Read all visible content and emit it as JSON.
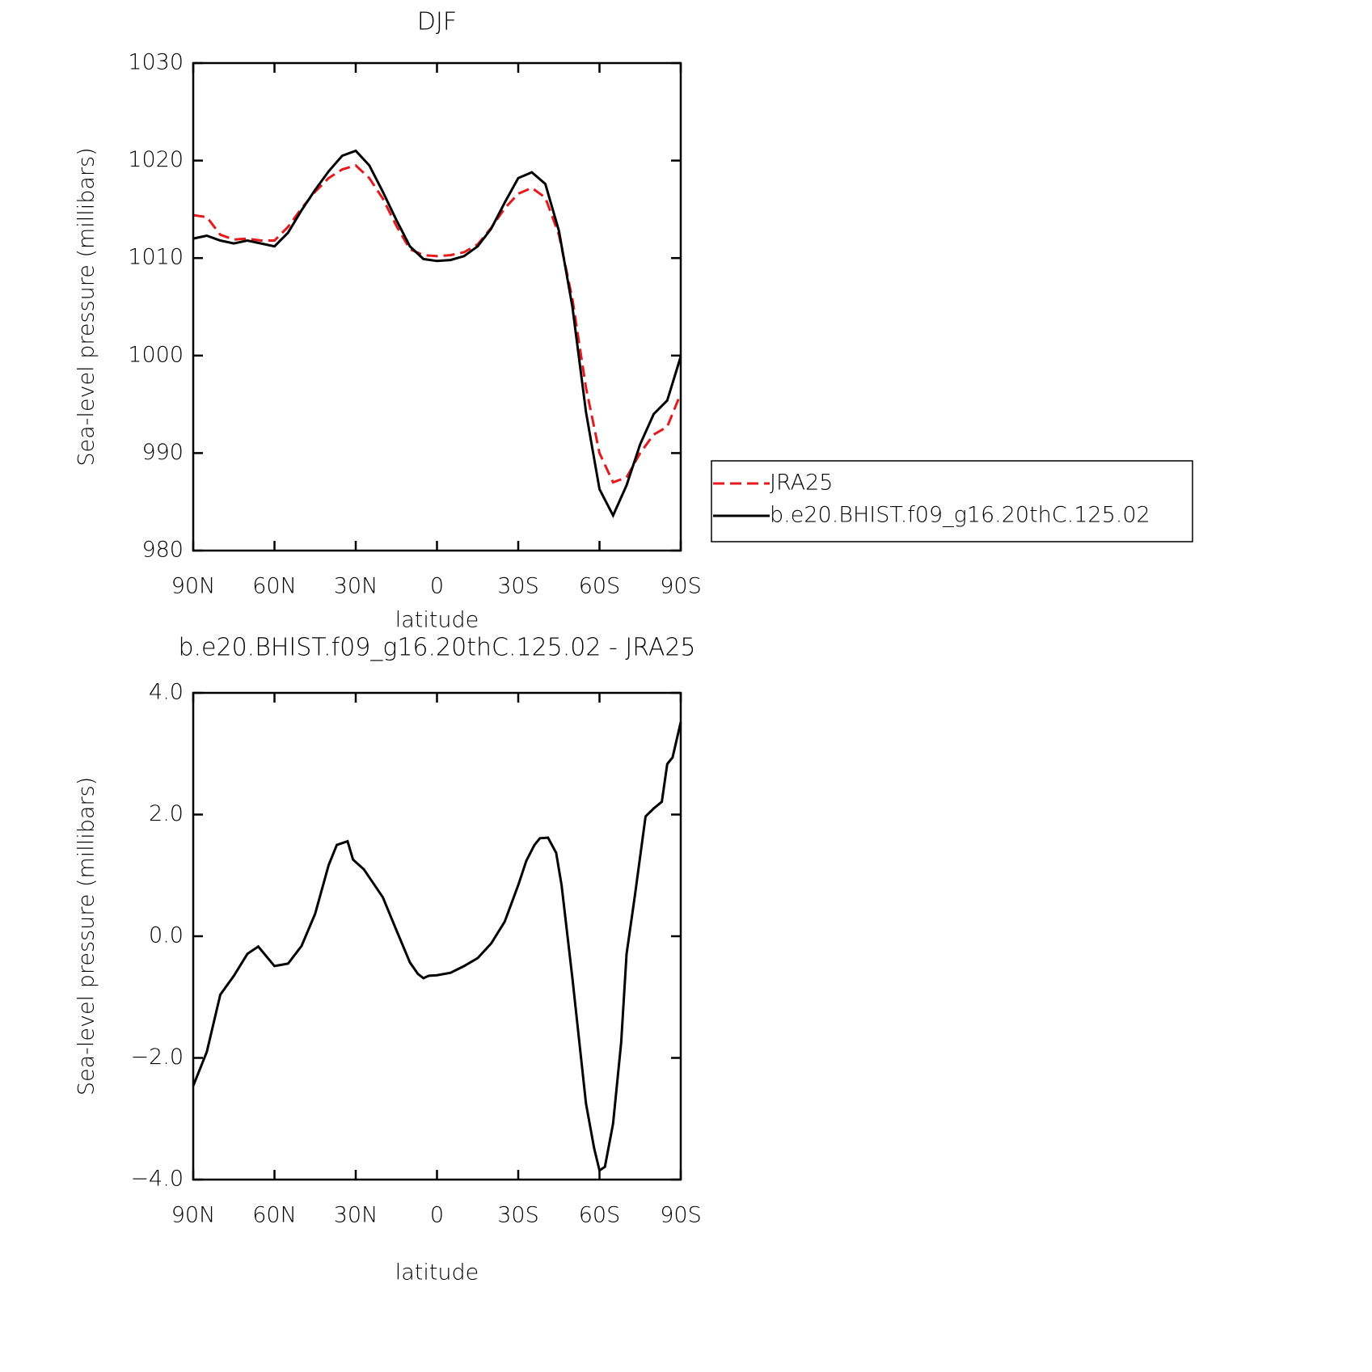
{
  "chart_data": [
    {
      "type": "line",
      "title": "DJF",
      "xlabel": "latitude",
      "ylabel": "Sea-level pressure (millibars)",
      "xlim": [
        90,
        -90
      ],
      "xticks": [
        {
          "value": 90,
          "label": "90N"
        },
        {
          "value": 60,
          "label": "60N"
        },
        {
          "value": 30,
          "label": "30N"
        },
        0,
        {
          "value": -30,
          "label": "30S"
        },
        {
          "value": -60,
          "label": "60S"
        },
        {
          "value": -90,
          "label": "90S"
        }
      ],
      "ylim": [
        980,
        1030
      ],
      "yticks": [
        980,
        990,
        1000,
        1010,
        1020,
        1030
      ],
      "legend": "right",
      "x": [
        90,
        85,
        80,
        75,
        70,
        65,
        60,
        55,
        50,
        45,
        40,
        35,
        30,
        25,
        20,
        15,
        10,
        5,
        0,
        -5,
        -10,
        -15,
        -20,
        -25,
        -30,
        -35,
        -40,
        -45,
        -50,
        -55,
        -60,
        -65,
        -70,
        -75,
        -80,
        -85,
        -90
      ],
      "series": [
        {
          "name": "JRA25",
          "color": "#e41a1c",
          "dash": "dashed",
          "values": [
            1014.4,
            1014.2,
            1012.4,
            1011.9,
            1012.0,
            1011.8,
            1011.8,
            1013.2,
            1015.1,
            1016.8,
            1018.2,
            1019.1,
            1019.5,
            1018.2,
            1016.1,
            1013.3,
            1010.9,
            1010.3,
            1010.2,
            1010.3,
            1010.6,
            1011.4,
            1013.1,
            1015.1,
            1016.6,
            1017.2,
            1016.2,
            1012.4,
            1005.8,
            996.7,
            990.0,
            987.0,
            987.5,
            990.0,
            991.9,
            992.7,
            996.1
          ]
        },
        {
          "name": "b.e20.BHIST.f09_g16.20thC.125.02",
          "color": "#000000",
          "dash": "solid",
          "values": [
            1012.0,
            1012.3,
            1011.8,
            1011.5,
            1011.8,
            1011.5,
            1011.2,
            1012.6,
            1014.9,
            1017.0,
            1018.9,
            1020.5,
            1021.0,
            1019.5,
            1016.8,
            1013.9,
            1011.2,
            1009.9,
            1009.7,
            1009.8,
            1010.2,
            1011.2,
            1013.0,
            1015.7,
            1018.2,
            1018.8,
            1017.6,
            1012.8,
            1005.0,
            994.2,
            986.3,
            983.6,
            986.7,
            990.9,
            994.0,
            995.4,
            999.9
          ]
        }
      ]
    },
    {
      "type": "line",
      "title": "b.e20.BHIST.f09_g16.20thC.125.02 - JRA25",
      "xlabel": "latitude",
      "ylabel": "Sea-level pressure (millibars)",
      "xlim": [
        90,
        -90
      ],
      "xticks": [
        {
          "value": 90,
          "label": "90N"
        },
        {
          "value": 60,
          "label": "60N"
        },
        {
          "value": 30,
          "label": "30N"
        },
        0,
        {
          "value": -30,
          "label": "30S"
        },
        {
          "value": -60,
          "label": "60S"
        },
        {
          "value": -90,
          "label": "90S"
        }
      ],
      "ylim": [
        -4,
        4
      ],
      "yticks": [
        {
          "value": -4,
          "label": "−4.0"
        },
        {
          "value": -2,
          "label": "−2.0"
        },
        {
          "value": 0,
          "label": "0.0"
        },
        {
          "value": 2,
          "label": "2.0"
        },
        {
          "value": 4,
          "label": "4.0"
        }
      ],
      "x": [
        90,
        85,
        80,
        75,
        70,
        66,
        60,
        55,
        50,
        45,
        40,
        37,
        33,
        31,
        27,
        20,
        15,
        10,
        7,
        5,
        3,
        0,
        -5,
        -10,
        -15,
        -20,
        -25,
        -30,
        -33,
        -36,
        -38,
        -41,
        -44,
        -46,
        -50,
        -55,
        -58,
        -60,
        -62,
        -65,
        -68,
        -70,
        -73,
        -77,
        -80,
        -83,
        -85,
        -87,
        -90
      ],
      "series": [
        {
          "color": "#000000",
          "dash": "solid",
          "values": [
            -2.46,
            -1.9,
            -0.96,
            -0.65,
            -0.29,
            -0.17,
            -0.49,
            -0.45,
            -0.16,
            0.37,
            1.17,
            1.5,
            1.56,
            1.26,
            1.1,
            0.64,
            0.1,
            -0.43,
            -0.62,
            -0.69,
            -0.65,
            -0.64,
            -0.6,
            -0.49,
            -0.36,
            -0.12,
            0.24,
            0.84,
            1.24,
            1.5,
            1.61,
            1.62,
            1.37,
            0.84,
            -0.69,
            -2.75,
            -3.48,
            -3.85,
            -3.79,
            -3.08,
            -1.75,
            -0.29,
            0.64,
            1.97,
            2.1,
            2.21,
            2.83,
            2.94,
            3.52
          ]
        }
      ]
    }
  ]
}
